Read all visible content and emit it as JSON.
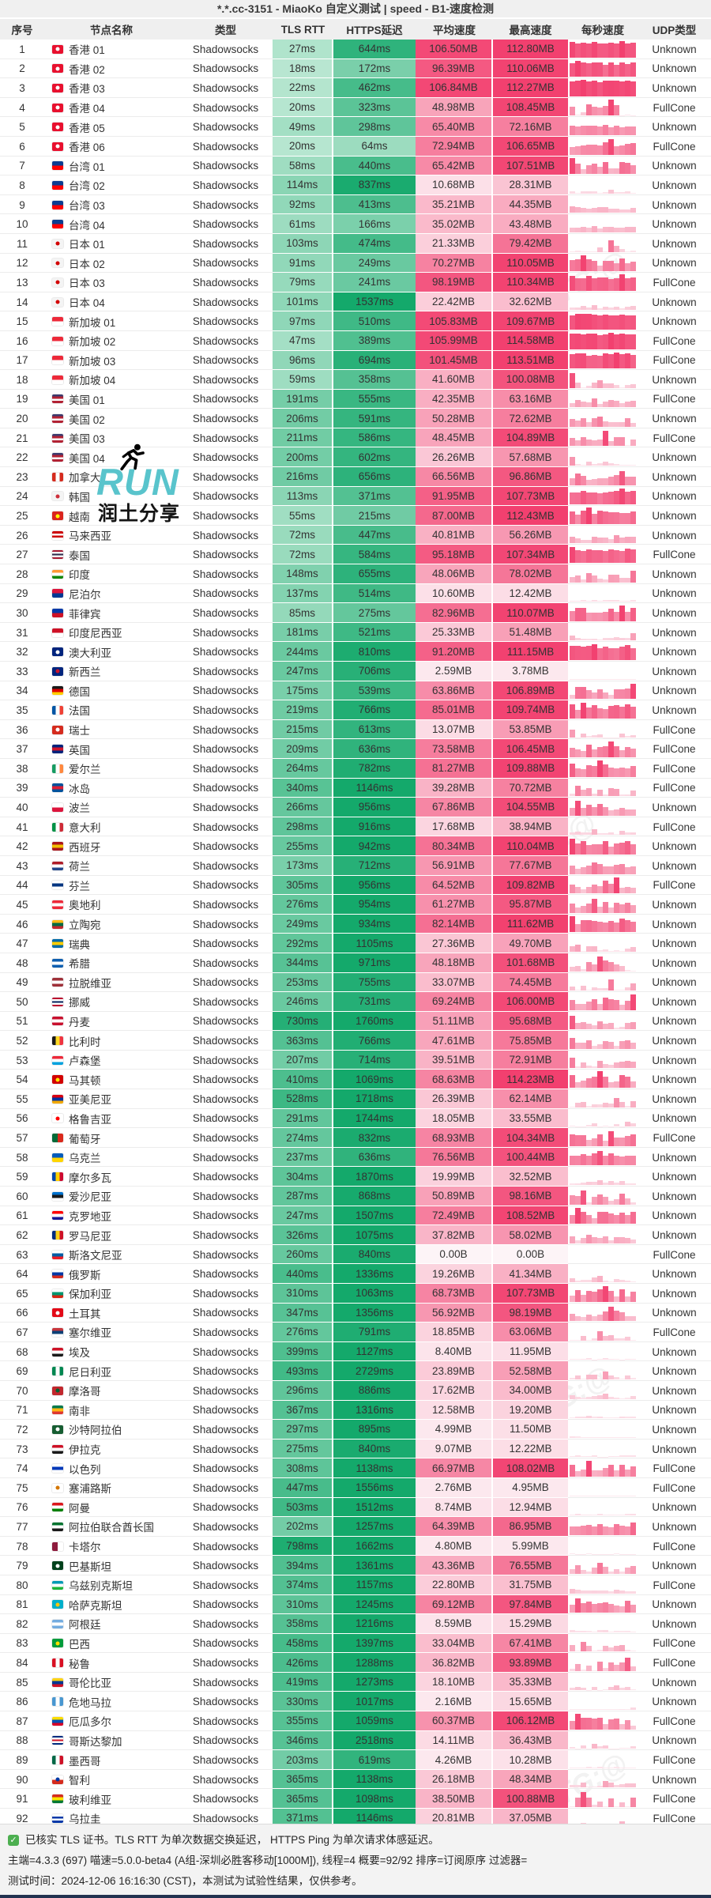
{
  "title": "*.*.cc-3151 - MiaoKo 自定义测试 | speed - B1-速度检测",
  "columns": [
    "序号",
    "节点名称",
    "类型",
    "TLS RTT",
    "HTTPS延迟",
    "平均速度",
    "最高速度",
    "每秒速度",
    "UDP类型"
  ],
  "node_type": "Shadowsocks",
  "units": {
    "latency": "ms"
  },
  "accent_colors": {
    "latency_green_light": "#dff5e9",
    "latency_green_dark": "#14a96b",
    "speed_pink_light": "#fdf1f5",
    "speed_pink_dark": "#f2406f"
  },
  "watermark": {
    "run_text": "RUN",
    "share_text": "润土分享",
    "diagonal_text": "TG:@"
  },
  "footer": {
    "line1": "已核实 TLS 证书。TLS RTT 为单次数据交换延迟， HTTPS Ping 为单次请求体感延迟。",
    "line2": "主端=4.3.3 (697) 喵速=5.0.0-beta4 (A组-深圳必胜客移动[1000M]), 线程=4 概要=92/92 排序=订阅原序 过滤器=",
    "line3": "测试时间：2024-12-06 16:16:30 (CST)，本测试为试验性结果，仅供参考。"
  },
  "flags": {
    "hk": {
      "s": [
        "#e8102e"
      ],
      "d": "#ffffff"
    },
    "tw": {
      "s": [
        "#0b3d91",
        "#fe0000"
      ]
    },
    "jp": {
      "s": [
        "#f4f4f4"
      ],
      "d": "#d30000"
    },
    "sg": {
      "s": [
        "#ed2939",
        "#ffffff"
      ]
    },
    "us": {
      "s": [
        "#3c3b6e",
        "#b22234",
        "#ffffff",
        "#b22234"
      ]
    },
    "ca": {
      "s": [
        "#d52b1e",
        "#ffffff",
        "#d52b1e"
      ],
      "o": "v"
    },
    "kr": {
      "s": [
        "#f4f4f4"
      ],
      "d": "#cd2e3a"
    },
    "vn": {
      "s": [
        "#da251d"
      ],
      "d": "#ffff00"
    },
    "my": {
      "s": [
        "#cc0001",
        "#ffffff",
        "#cc0001",
        "#ffffff"
      ]
    },
    "th": {
      "s": [
        "#a51931",
        "#f4f5f8",
        "#2d2a4a",
        "#f4f5f8",
        "#a51931"
      ]
    },
    "in": {
      "s": [
        "#ff9933",
        "#ffffff",
        "#138808"
      ]
    },
    "np": {
      "s": [
        "#dc143c",
        "#003893"
      ]
    },
    "ph": {
      "s": [
        "#0038a8",
        "#ce1126"
      ]
    },
    "id": {
      "s": [
        "#ce1126",
        "#ffffff"
      ]
    },
    "au": {
      "s": [
        "#00247d"
      ],
      "d": "#ffffff"
    },
    "nz": {
      "s": [
        "#00247d"
      ],
      "d": "#cc142b"
    },
    "de": {
      "s": [
        "#1a1a1a",
        "#dd0000",
        "#ffce00"
      ]
    },
    "fr": {
      "s": [
        "#0055a4",
        "#ffffff",
        "#ef4135"
      ],
      "o": "v"
    },
    "ch": {
      "s": [
        "#d52b1e"
      ],
      "d": "#ffffff"
    },
    "gb": {
      "s": [
        "#00247d",
        "#cf142b",
        "#00247d"
      ]
    },
    "ie": {
      "s": [
        "#169b62",
        "#ffffff",
        "#ff883e"
      ],
      "o": "v"
    },
    "is": {
      "s": [
        "#02529c",
        "#dc1e35",
        "#02529c"
      ]
    },
    "pl": {
      "s": [
        "#ffffff",
        "#dc143c"
      ]
    },
    "it": {
      "s": [
        "#009246",
        "#ffffff",
        "#ce2b37"
      ],
      "o": "v"
    },
    "es": {
      "s": [
        "#aa151b",
        "#f1bf00",
        "#aa151b"
      ]
    },
    "nl": {
      "s": [
        "#ae1c28",
        "#ffffff",
        "#21468b"
      ]
    },
    "fi": {
      "s": [
        "#ffffff",
        "#003580",
        "#ffffff"
      ]
    },
    "at": {
      "s": [
        "#ed2939",
        "#ffffff",
        "#ed2939"
      ]
    },
    "lt": {
      "s": [
        "#fdb913",
        "#006a44",
        "#c1272d"
      ]
    },
    "se": {
      "s": [
        "#006aa7",
        "#fecc00",
        "#006aa7"
      ]
    },
    "gr": {
      "s": [
        "#0d5eaf",
        "#ffffff",
        "#0d5eaf"
      ]
    },
    "lv": {
      "s": [
        "#9e3039",
        "#ffffff",
        "#9e3039"
      ]
    },
    "no": {
      "s": [
        "#ba0c2f",
        "#ffffff",
        "#00205b",
        "#ffffff",
        "#ba0c2f"
      ]
    },
    "dk": {
      "s": [
        "#c8102e",
        "#ffffff",
        "#c8102e"
      ]
    },
    "be": {
      "s": [
        "#1a1a1a",
        "#fdda24",
        "#ef3340"
      ],
      "o": "v"
    },
    "lu": {
      "s": [
        "#ed2939",
        "#ffffff",
        "#00a1de"
      ]
    },
    "mk": {
      "s": [
        "#d20000"
      ],
      "d": "#ffe600"
    },
    "am": {
      "s": [
        "#d90012",
        "#0033a0",
        "#f2a800"
      ]
    },
    "ge": {
      "s": [
        "#ffffff"
      ],
      "d": "#ff0000"
    },
    "pt": {
      "s": [
        "#046a38",
        "#da291c"
      ],
      "o": "v"
    },
    "ua": {
      "s": [
        "#005bbb",
        "#ffd500"
      ]
    },
    "md": {
      "s": [
        "#0046ae",
        "#ffd200",
        "#cc092f"
      ],
      "o": "v"
    },
    "ee": {
      "s": [
        "#0072ce",
        "#1a1a1a",
        "#ffffff"
      ]
    },
    "hr": {
      "s": [
        "#ff0000",
        "#ffffff",
        "#171796"
      ]
    },
    "ro": {
      "s": [
        "#002b7f",
        "#fcd116",
        "#ce1126"
      ],
      "o": "v"
    },
    "si": {
      "s": [
        "#ffffff",
        "#005da4",
        "#ed1c24"
      ]
    },
    "ru": {
      "s": [
        "#ffffff",
        "#0039a6",
        "#d52b1e"
      ]
    },
    "bg": {
      "s": [
        "#ffffff",
        "#00966e",
        "#d62612"
      ]
    },
    "tr": {
      "s": [
        "#e30a17"
      ],
      "d": "#ffffff"
    },
    "rs": {
      "s": [
        "#c6363c",
        "#0c4076",
        "#ffffff"
      ]
    },
    "eg": {
      "s": [
        "#ce1126",
        "#ffffff",
        "#1a1a1a"
      ]
    },
    "ng": {
      "s": [
        "#008751",
        "#ffffff",
        "#008751"
      ],
      "o": "v"
    },
    "ma": {
      "s": [
        "#c1272d"
      ],
      "d": "#006233"
    },
    "za": {
      "s": [
        "#007a4d",
        "#ffb612",
        "#de3831"
      ]
    },
    "sa": {
      "s": [
        "#165d31"
      ],
      "d": "#ffffff"
    },
    "iq": {
      "s": [
        "#ce1126",
        "#ffffff",
        "#1a1a1a"
      ]
    },
    "il": {
      "s": [
        "#ffffff",
        "#0038b8",
        "#ffffff"
      ]
    },
    "cy": {
      "s": [
        "#ffffff"
      ],
      "d": "#d47600"
    },
    "om": {
      "s": [
        "#db161b",
        "#ffffff",
        "#008000"
      ]
    },
    "ae": {
      "s": [
        "#00732f",
        "#ffffff",
        "#1a1a1a"
      ]
    },
    "qa": {
      "s": [
        "#8d1b3d",
        "#ffffff"
      ],
      "o": "v"
    },
    "pk": {
      "s": [
        "#01411c"
      ],
      "d": "#ffffff"
    },
    "uz": {
      "s": [
        "#0099b5",
        "#ffffff",
        "#1eb53a"
      ]
    },
    "kz": {
      "s": [
        "#00afca"
      ],
      "d": "#fec50c"
    },
    "ar": {
      "s": [
        "#74acdf",
        "#ffffff",
        "#74acdf"
      ]
    },
    "br": {
      "s": [
        "#009c3b"
      ],
      "d": "#ffdf00"
    },
    "pe": {
      "s": [
        "#d91023",
        "#ffffff",
        "#d91023"
      ],
      "o": "v"
    },
    "co": {
      "s": [
        "#fcd116",
        "#003893",
        "#ce1126"
      ]
    },
    "gt": {
      "s": [
        "#4997d0",
        "#ffffff",
        "#4997d0"
      ],
      "o": "v"
    },
    "ec": {
      "s": [
        "#ffdd00",
        "#0052b4",
        "#d80027"
      ]
    },
    "cr": {
      "s": [
        "#002b7f",
        "#ffffff",
        "#ce1126",
        "#ffffff",
        "#002b7f"
      ]
    },
    "mx": {
      "s": [
        "#006847",
        "#ffffff",
        "#ce1126"
      ],
      "o": "v"
    },
    "cl": {
      "s": [
        "#ffffff",
        "#d52b1e"
      ],
      "d": "#0039a6"
    },
    "bo": {
      "s": [
        "#d52b1e",
        "#f9e300",
        "#007934"
      ]
    },
    "uy": {
      "s": [
        "#ffffff",
        "#0038a8",
        "#ffffff",
        "#0038a8"
      ]
    }
  },
  "rows": [
    [
      "香港 01",
      "hk",
      27,
      644,
      "106.50MB",
      "112.80MB",
      "Unknown"
    ],
    [
      "香港 02",
      "hk",
      18,
      172,
      "96.39MB",
      "110.06MB",
      "Unknown"
    ],
    [
      "香港 03",
      "hk",
      22,
      462,
      "106.84MB",
      "112.27MB",
      "Unknown"
    ],
    [
      "香港 04",
      "hk",
      20,
      323,
      "48.98MB",
      "108.45MB",
      "FullCone"
    ],
    [
      "香港 05",
      "hk",
      49,
      298,
      "65.40MB",
      "72.16MB",
      "Unknown"
    ],
    [
      "香港 06",
      "hk",
      20,
      64,
      "72.94MB",
      "106.65MB",
      "FullCone"
    ],
    [
      "台湾 01",
      "tw",
      58,
      440,
      "65.42MB",
      "107.51MB",
      "Unknown"
    ],
    [
      "台湾 02",
      "tw",
      114,
      837,
      "10.68MB",
      "28.31MB",
      "Unknown"
    ],
    [
      "台湾 03",
      "tw",
      92,
      413,
      "35.21MB",
      "44.35MB",
      "Unknown"
    ],
    [
      "台湾 04",
      "tw",
      61,
      166,
      "35.02MB",
      "43.48MB",
      "Unknown"
    ],
    [
      "日本 01",
      "jp",
      103,
      474,
      "21.33MB",
      "79.42MB",
      "Unknown"
    ],
    [
      "日本 02",
      "jp",
      91,
      249,
      "70.27MB",
      "110.05MB",
      "Unknown"
    ],
    [
      "日本 03",
      "jp",
      79,
      241,
      "98.19MB",
      "110.34MB",
      "FullCone"
    ],
    [
      "日本 04",
      "jp",
      101,
      1537,
      "22.42MB",
      "32.62MB",
      "Unknown"
    ],
    [
      "新加坡 01",
      "sg",
      97,
      510,
      "105.83MB",
      "109.67MB",
      "Unknown"
    ],
    [
      "新加坡 02",
      "sg",
      47,
      389,
      "105.99MB",
      "114.58MB",
      "FullCone"
    ],
    [
      "新加坡 03",
      "sg",
      96,
      694,
      "101.45MB",
      "113.51MB",
      "FullCone"
    ],
    [
      "新加坡 04",
      "sg",
      59,
      358,
      "41.60MB",
      "100.08MB",
      "Unknown"
    ],
    [
      "美国 01",
      "us",
      191,
      555,
      "42.35MB",
      "63.16MB",
      "FullCone"
    ],
    [
      "美国 02",
      "us",
      206,
      591,
      "50.28MB",
      "72.62MB",
      "Unknown"
    ],
    [
      "美国 03",
      "us",
      211,
      586,
      "48.45MB",
      "104.89MB",
      "FullCone"
    ],
    [
      "美国 04",
      "us",
      200,
      602,
      "26.26MB",
      "57.68MB",
      "Unknown"
    ],
    [
      "加拿大",
      "ca",
      216,
      656,
      "66.56MB",
      "96.86MB",
      "Unknown"
    ],
    [
      "韩国",
      "kr",
      113,
      371,
      "91.95MB",
      "107.73MB",
      "Unknown"
    ],
    [
      "越南",
      "vn",
      55,
      215,
      "87.00MB",
      "112.43MB",
      "Unknown"
    ],
    [
      "马来西亚",
      "my",
      72,
      447,
      "40.81MB",
      "56.26MB",
      "Unknown"
    ],
    [
      "泰国",
      "th",
      72,
      584,
      "95.18MB",
      "107.34MB",
      "FullCone"
    ],
    [
      "印度",
      "in",
      148,
      655,
      "48.06MB",
      "78.02MB",
      "Unknown"
    ],
    [
      "尼泊尔",
      "np",
      137,
      514,
      "10.60MB",
      "12.42MB",
      "Unknown"
    ],
    [
      "菲律宾",
      "ph",
      85,
      275,
      "82.96MB",
      "110.07MB",
      "Unknown"
    ],
    [
      "印度尼西亚",
      "id",
      181,
      521,
      "25.33MB",
      "51.48MB",
      "Unknown"
    ],
    [
      "澳大利亚",
      "au",
      244,
      810,
      "91.20MB",
      "111.15MB",
      "Unknown"
    ],
    [
      "新西兰",
      "nz",
      247,
      706,
      "2.59MB",
      "3.78MB",
      "Unknown"
    ],
    [
      "德国",
      "de",
      175,
      539,
      "63.86MB",
      "106.89MB",
      "Unknown"
    ],
    [
      "法国",
      "fr",
      219,
      766,
      "85.01MB",
      "109.74MB",
      "Unknown"
    ],
    [
      "瑞士",
      "ch",
      215,
      613,
      "13.07MB",
      "53.85MB",
      "FullCone"
    ],
    [
      "英国",
      "gb",
      209,
      636,
      "73.58MB",
      "106.45MB",
      "FullCone"
    ],
    [
      "爱尔兰",
      "ie",
      264,
      782,
      "81.27MB",
      "109.88MB",
      "FullCone"
    ],
    [
      "冰岛",
      "is",
      340,
      1146,
      "39.28MB",
      "70.72MB",
      "FullCone"
    ],
    [
      "波兰",
      "pl",
      266,
      956,
      "67.86MB",
      "104.55MB",
      "Unknown"
    ],
    [
      "意大利",
      "it",
      298,
      916,
      "17.68MB",
      "38.94MB",
      "FullCone"
    ],
    [
      "西班牙",
      "es",
      255,
      942,
      "80.34MB",
      "110.04MB",
      "Unknown"
    ],
    [
      "荷兰",
      "nl",
      173,
      712,
      "56.91MB",
      "77.67MB",
      "Unknown"
    ],
    [
      "芬兰",
      "fi",
      305,
      956,
      "64.52MB",
      "109.82MB",
      "FullCone"
    ],
    [
      "奥地利",
      "at",
      276,
      954,
      "61.27MB",
      "95.87MB",
      "Unknown"
    ],
    [
      "立陶宛",
      "lt",
      249,
      934,
      "82.14MB",
      "111.62MB",
      "Unknown"
    ],
    [
      "瑞典",
      "se",
      292,
      1105,
      "27.36MB",
      "49.70MB",
      "Unknown"
    ],
    [
      "希腊",
      "gr",
      344,
      971,
      "48.18MB",
      "101.68MB",
      "Unknown"
    ],
    [
      "拉脱维亚",
      "lv",
      253,
      755,
      "33.07MB",
      "74.45MB",
      "Unknown"
    ],
    [
      "挪威",
      "no",
      246,
      731,
      "69.24MB",
      "106.00MB",
      "Unknown"
    ],
    [
      "丹麦",
      "dk",
      730,
      1760,
      "51.11MB",
      "95.68MB",
      "Unknown"
    ],
    [
      "比利时",
      "be",
      363,
      766,
      "47.61MB",
      "75.85MB",
      "Unknown"
    ],
    [
      "卢森堡",
      "lu",
      207,
      714,
      "39.51MB",
      "72.91MB",
      "Unknown"
    ],
    [
      "马其顿",
      "mk",
      410,
      1069,
      "68.63MB",
      "114.23MB",
      "Unknown"
    ],
    [
      "亚美尼亚",
      "am",
      528,
      1718,
      "26.39MB",
      "62.14MB",
      "Unknown"
    ],
    [
      "格鲁吉亚",
      "ge",
      291,
      1744,
      "18.05MB",
      "33.55MB",
      "Unknown"
    ],
    [
      "葡萄牙",
      "pt",
      274,
      832,
      "68.93MB",
      "104.34MB",
      "FullCone"
    ],
    [
      "乌克兰",
      "ua",
      237,
      636,
      "76.56MB",
      "100.44MB",
      "Unknown"
    ],
    [
      "摩尔多瓦",
      "md",
      304,
      1870,
      "19.99MB",
      "32.52MB",
      "Unknown"
    ],
    [
      "爱沙尼亚",
      "ee",
      287,
      868,
      "50.89MB",
      "98.16MB",
      "Unknown"
    ],
    [
      "克罗地亚",
      "hr",
      247,
      1507,
      "72.49MB",
      "108.52MB",
      "Unknown"
    ],
    [
      "罗马尼亚",
      "ro",
      326,
      1075,
      "37.82MB",
      "58.02MB",
      "Unknown"
    ],
    [
      "斯洛文尼亚",
      "si",
      260,
      840,
      "0.00B",
      "0.00B",
      "FullCone"
    ],
    [
      "俄罗斯",
      "ru",
      440,
      1336,
      "19.26MB",
      "41.34MB",
      "Unknown"
    ],
    [
      "保加利亚",
      "bg",
      310,
      1063,
      "68.73MB",
      "107.73MB",
      "Unknown"
    ],
    [
      "土耳其",
      "tr",
      347,
      1356,
      "56.92MB",
      "98.19MB",
      "Unknown"
    ],
    [
      "塞尔维亚",
      "rs",
      276,
      791,
      "18.85MB",
      "63.06MB",
      "FullCone"
    ],
    [
      "埃及",
      "eg",
      399,
      1127,
      "8.40MB",
      "11.95MB",
      "Unknown"
    ],
    [
      "尼日利亚",
      "ng",
      493,
      2729,
      "23.89MB",
      "52.58MB",
      "Unknown"
    ],
    [
      "摩洛哥",
      "ma",
      296,
      886,
      "17.62MB",
      "34.00MB",
      "Unknown"
    ],
    [
      "南非",
      "za",
      367,
      1316,
      "12.58MB",
      "19.20MB",
      "Unknown"
    ],
    [
      "沙特阿拉伯",
      "sa",
      297,
      895,
      "4.99MB",
      "11.50MB",
      "Unknown"
    ],
    [
      "伊拉克",
      "iq",
      275,
      840,
      "9.07MB",
      "12.22MB",
      "Unknown"
    ],
    [
      "以色列",
      "il",
      308,
      1138,
      "66.97MB",
      "108.02MB",
      "FullCone"
    ],
    [
      "塞浦路斯",
      "cy",
      447,
      1556,
      "2.76MB",
      "4.95MB",
      "FullCone"
    ],
    [
      "阿曼",
      "om",
      503,
      1512,
      "8.74MB",
      "12.94MB",
      "Unknown"
    ],
    [
      "阿拉伯联合酋长国",
      "ae",
      202,
      1257,
      "64.39MB",
      "86.95MB",
      "Unknown"
    ],
    [
      "卡塔尔",
      "qa",
      798,
      1662,
      "4.80MB",
      "5.99MB",
      "FullCone"
    ],
    [
      "巴基斯坦",
      "pk",
      394,
      1361,
      "43.36MB",
      "76.55MB",
      "Unknown"
    ],
    [
      "乌兹别克斯坦",
      "uz",
      374,
      1157,
      "22.80MB",
      "31.75MB",
      "FullCone"
    ],
    [
      "哈萨克斯坦",
      "kz",
      310,
      1245,
      "69.12MB",
      "97.84MB",
      "Unknown"
    ],
    [
      "阿根廷",
      "ar",
      358,
      1216,
      "8.59MB",
      "15.29MB",
      "Unknown"
    ],
    [
      "巴西",
      "br",
      458,
      1397,
      "33.04MB",
      "67.41MB",
      "FullCone"
    ],
    [
      "秘鲁",
      "pe",
      426,
      1288,
      "36.82MB",
      "93.89MB",
      "FullCone"
    ],
    [
      "哥伦比亚",
      "co",
      419,
      1273,
      "18.10MB",
      "35.33MB",
      "Unknown"
    ],
    [
      "危地马拉",
      "gt",
      330,
      1017,
      "2.16MB",
      "15.65MB",
      "Unknown"
    ],
    [
      "厄瓜多尔",
      "ec",
      355,
      1059,
      "60.37MB",
      "106.12MB",
      "FullCone"
    ],
    [
      "哥斯达黎加",
      "cr",
      346,
      2518,
      "14.11MB",
      "36.43MB",
      "Unknown"
    ],
    [
      "墨西哥",
      "mx",
      203,
      619,
      "4.26MB",
      "10.28MB",
      "FullCone"
    ],
    [
      "智利",
      "cl",
      365,
      1138,
      "26.18MB",
      "48.34MB",
      "Unknown"
    ],
    [
      "玻利维亚",
      "bo",
      365,
      1098,
      "38.50MB",
      "100.88MB",
      "FullCone"
    ],
    [
      "乌拉圭",
      "uy",
      371,
      1146,
      "20.81MB",
      "37.05MB",
      "FullCone"
    ]
  ]
}
